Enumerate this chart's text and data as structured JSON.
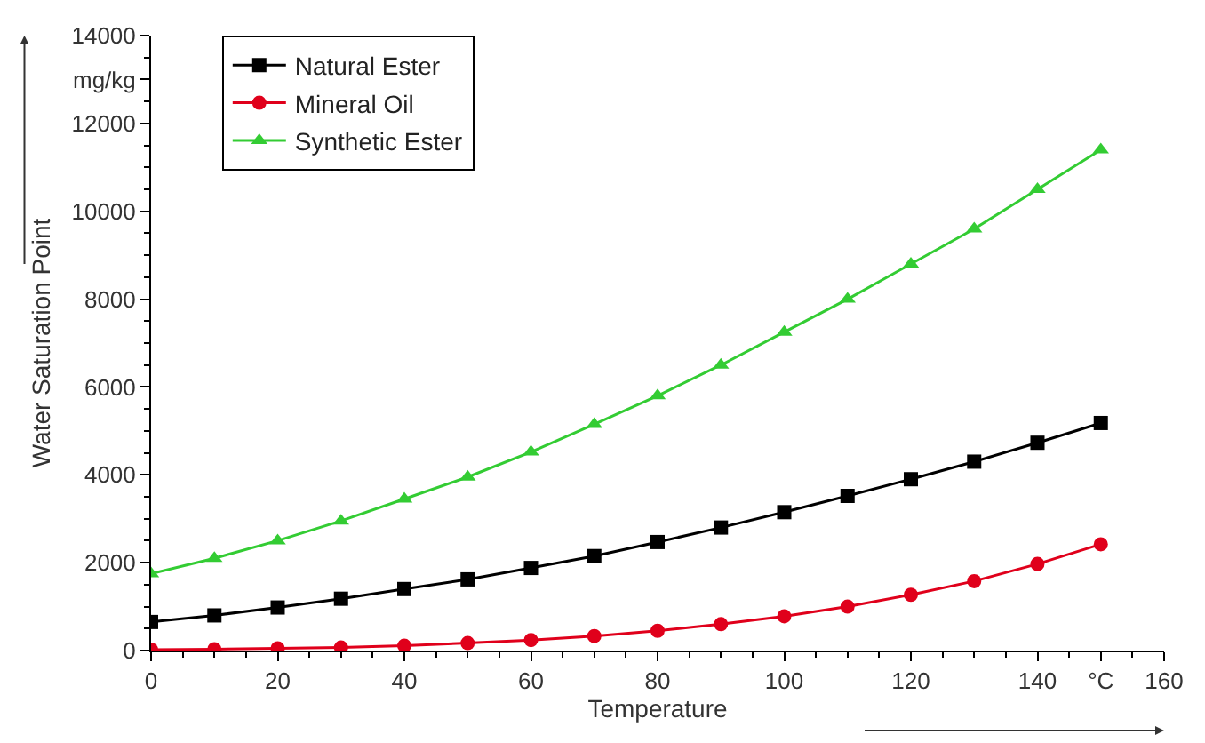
{
  "chart_data": {
    "type": "line",
    "xlabel": "Temperature",
    "ylabel": "Water Saturation Point",
    "x": [
      0,
      10,
      20,
      30,
      40,
      50,
      60,
      70,
      80,
      90,
      100,
      110,
      120,
      130,
      140,
      150
    ],
    "series": [
      {
        "name": "Natural Ester",
        "color": "#000000",
        "marker": "square",
        "values": [
          650,
          800,
          980,
          1180,
          1400,
          1620,
          1880,
          2150,
          2470,
          2800,
          3150,
          3520,
          3900,
          4300,
          4730,
          5180
        ]
      },
      {
        "name": "Mineral Oil",
        "color": "#e0001b",
        "marker": "circle",
        "values": [
          20,
          30,
          50,
          70,
          110,
          170,
          240,
          330,
          450,
          600,
          780,
          1000,
          1270,
          1580,
          1970,
          2420
        ]
      },
      {
        "name": "Synthetic Ester",
        "color": "#33cc33",
        "marker": "triangle",
        "values": [
          1750,
          2100,
          2500,
          2950,
          3450,
          3950,
          4520,
          5150,
          5800,
          6500,
          7250,
          8000,
          8800,
          9600,
          10500,
          11400
        ]
      }
    ],
    "xlim": [
      0,
      160
    ],
    "xticks": [
      0,
      20,
      40,
      60,
      80,
      100,
      120,
      140,
      {
        "value": 150,
        "label": "°C"
      },
      160
    ],
    "ylim": [
      0,
      14000
    ],
    "yticks": [
      0,
      2000,
      4000,
      6000,
      8000,
      10000,
      12000,
      {
        "value": 13000,
        "label": "mg/kg"
      },
      14000
    ],
    "legend": "top left",
    "line_style": "solid"
  }
}
